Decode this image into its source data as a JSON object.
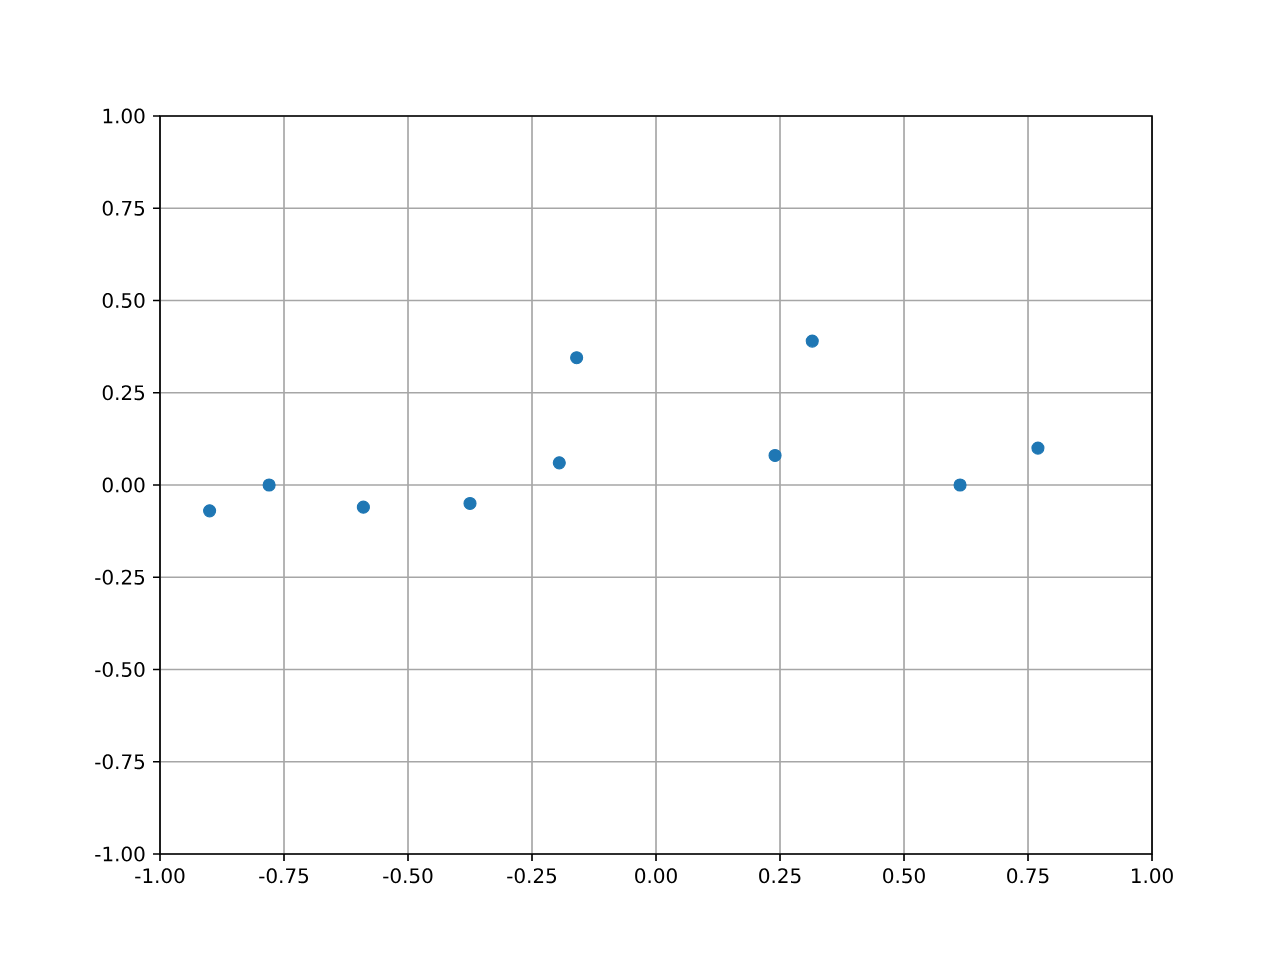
{
  "chart_data": {
    "type": "scatter",
    "x": [
      -0.9,
      -0.78,
      -0.59,
      -0.375,
      -0.195,
      -0.16,
      0.24,
      0.315,
      0.613,
      0.77
    ],
    "series": [
      {
        "color": "#1f77b4",
        "values": [
          -0.07,
          0.0,
          -0.06,
          -0.05,
          0.06,
          0.345,
          0.08,
          0.39,
          0.0,
          0.1
        ]
      }
    ],
    "xlim": [
      -1,
      1
    ],
    "ylim": [
      -1,
      1
    ],
    "xticks": [
      {
        "value": -1,
        "label": "-1.00"
      },
      {
        "value": -0.75,
        "label": "-0.75"
      },
      {
        "value": -0.5,
        "label": "-0.50"
      },
      {
        "value": -0.25,
        "label": "-0.25"
      },
      {
        "value": 0,
        "label": "0.00"
      },
      {
        "value": 0.25,
        "label": "0.25"
      },
      {
        "value": 0.5,
        "label": "0.50"
      },
      {
        "value": 0.75,
        "label": "0.75"
      },
      {
        "value": 1,
        "label": "1.00"
      }
    ],
    "yticks": [
      {
        "value": -1,
        "label": "-1.00"
      },
      {
        "value": -0.75,
        "label": "-0.75"
      },
      {
        "value": -0.5,
        "label": "-0.50"
      },
      {
        "value": -0.25,
        "label": "-0.25"
      },
      {
        "value": 0,
        "label": "0.00"
      },
      {
        "value": 0.25,
        "label": "0.25"
      },
      {
        "value": 0.5,
        "label": "0.50"
      },
      {
        "value": 0.75,
        "label": "0.75"
      },
      {
        "value": 1,
        "label": "1.00"
      }
    ],
    "grid": true,
    "marker": "circle"
  }
}
